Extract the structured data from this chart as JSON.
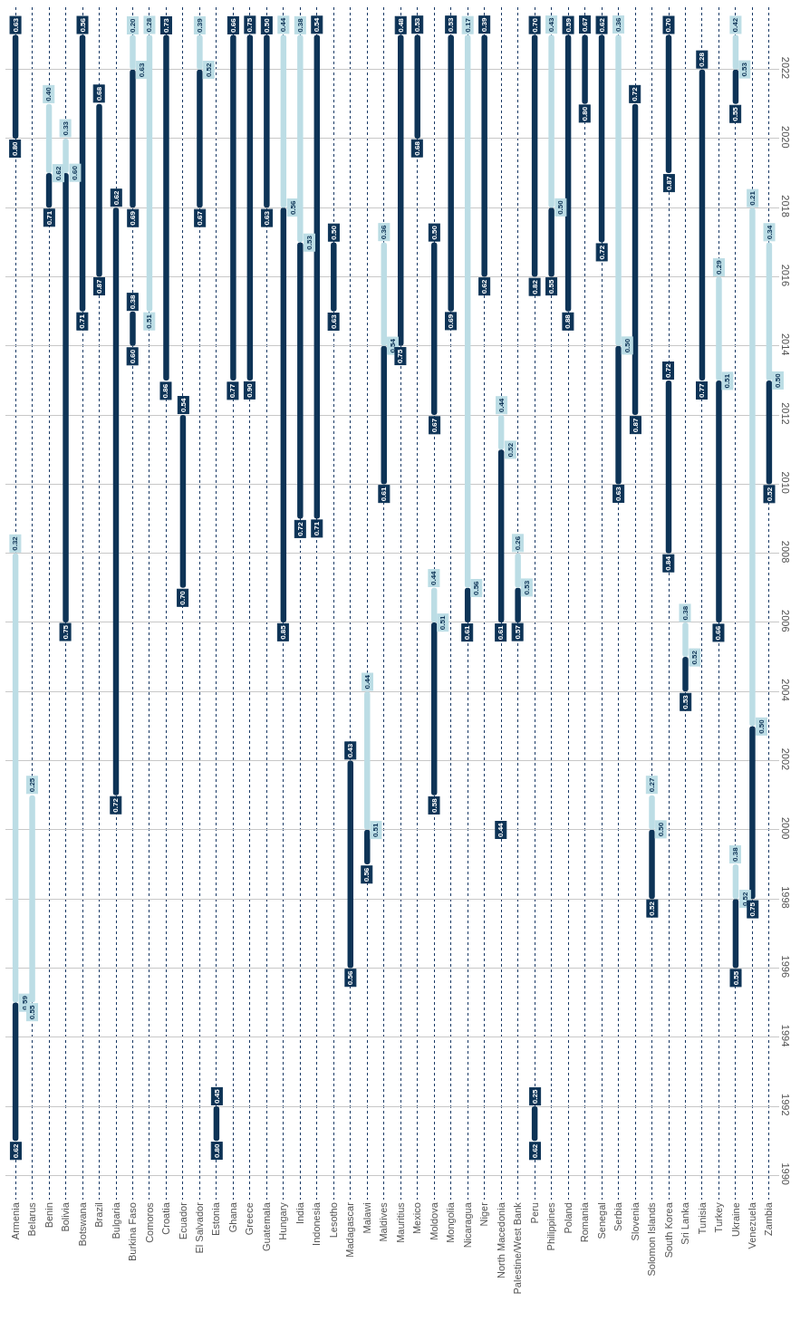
{
  "chart_data": {
    "type": "bar",
    "categories": [
      "Armenia",
      "Belarus",
      "Benin",
      "Bolivia",
      "Botswana",
      "Brazil",
      "Bulgaria",
      "Burkina Faso",
      "Comoros",
      "Croatia",
      "Ecuador",
      "El Salvador",
      "Estonia",
      "Ghana",
      "Greece",
      "Guatemala",
      "Hungary",
      "India",
      "Indonesia",
      "Lesotho",
      "Madagascar",
      "Malawi",
      "Maldives",
      "Mauritius",
      "Mexico",
      "Moldova",
      "Mongolia",
      "Nicaragua",
      "Niger",
      "North Macedonia",
      "Palestine/West Bank",
      "Peru",
      "Philippines",
      "Poland",
      "Romania",
      "Senegal",
      "Serbia",
      "Slovenia",
      "Solomon Islands",
      "South Korea",
      "Sri Lanka",
      "Tunisia",
      "Turkey",
      "Ukraine",
      "Venezuela",
      "Zambia"
    ],
    "series": [
      {
        "color": "#0d3356",
        "base": [
          1991,
          null,
          2018,
          2006,
          2015,
          2016,
          2001,
          2014,
          null,
          2013,
          2007,
          2018,
          1991,
          2013,
          2013,
          2018,
          2006,
          2009,
          2009,
          2015,
          1996,
          1999,
          2010,
          2014,
          2020,
          2001,
          2015,
          2006,
          2016,
          2006,
          2006,
          1991,
          2016,
          2015,
          2021,
          2017,
          2010,
          2012,
          1998,
          2008,
          2004,
          2013,
          2006,
          1996,
          1998,
          2010
        ],
        "values": [
          4,
          null,
          1,
          13,
          8,
          5,
          17,
          1,
          null,
          10,
          5,
          4,
          1,
          10,
          10,
          5,
          12,
          8,
          14,
          2,
          6,
          1,
          4,
          9,
          3,
          5,
          8,
          1,
          7,
          5,
          1,
          1,
          2,
          8,
          2,
          6,
          4,
          9,
          2,
          5,
          1,
          9,
          7,
          2,
          5,
          3
        ]
      },
      {
        "color": "#0d3356",
        "base": [
          2020,
          null,
          null,
          null,
          null,
          null,
          null,
          2018,
          null,
          null,
          null,
          null,
          null,
          null,
          null,
          null,
          null,
          null,
          null,
          null,
          null,
          null,
          null,
          null,
          null,
          2012,
          null,
          null,
          null,
          null,
          null,
          2016,
          null,
          null,
          null,
          null,
          null,
          null,
          null,
          2019,
          null,
          null,
          null,
          2021,
          null,
          null
        ],
        "values": [
          3,
          null,
          null,
          null,
          null,
          null,
          null,
          4,
          null,
          null,
          null,
          null,
          null,
          null,
          null,
          null,
          null,
          null,
          null,
          null,
          null,
          null,
          null,
          null,
          null,
          5,
          null,
          null,
          null,
          null,
          null,
          7,
          null,
          null,
          null,
          null,
          null,
          null,
          null,
          4,
          null,
          null,
          null,
          1,
          null,
          null
        ]
      },
      {
        "color": "#bcdde5",
        "base": [
          1995,
          1995,
          2019,
          2019,
          null,
          null,
          null,
          2022,
          2015,
          null,
          null,
          2022,
          null,
          null,
          null,
          null,
          2018,
          2017,
          null,
          null,
          null,
          2000,
          2014,
          null,
          null,
          2006,
          null,
          2007,
          null,
          null,
          2007,
          null,
          2018,
          null,
          null,
          null,
          2014,
          null,
          2000,
          null,
          2005,
          null,
          2013,
          1998,
          2003,
          2013
        ],
        "values": [
          13,
          6,
          2,
          1,
          null,
          null,
          null,
          1,
          8,
          null,
          null,
          1,
          null,
          null,
          null,
          null,
          5,
          6,
          null,
          null,
          null,
          4,
          3,
          null,
          null,
          1,
          null,
          16,
          null,
          null,
          1,
          null,
          5,
          null,
          null,
          null,
          9,
          null,
          1,
          null,
          1,
          null,
          3,
          1,
          15,
          4
        ]
      },
      {
        "color": "#bcdde5",
        "base": [
          null,
          null,
          null,
          null,
          null,
          null,
          null,
          null,
          null,
          null,
          null,
          null,
          null,
          null,
          null,
          null,
          null,
          null,
          null,
          null,
          null,
          null,
          null,
          null,
          null,
          null,
          null,
          null,
          null,
          2011,
          null,
          null,
          null,
          null,
          null,
          null,
          null,
          null,
          null,
          null,
          null,
          null,
          null,
          2022,
          null,
          null
        ],
        "values": [
          null,
          null,
          null,
          null,
          null,
          null,
          null,
          null,
          null,
          null,
          null,
          null,
          null,
          null,
          null,
          null,
          null,
          null,
          null,
          null,
          null,
          null,
          null,
          null,
          null,
          null,
          null,
          null,
          null,
          1,
          null,
          null,
          null,
          null,
          null,
          null,
          null,
          null,
          null,
          null,
          null,
          null,
          null,
          1,
          null,
          null
        ]
      }
    ],
    "ylim": [
      1989.3,
      2023.8
    ],
    "yticks": [
      1990,
      1992,
      1994,
      1996,
      1998,
      2000,
      2002,
      2004,
      2006,
      2008,
      2010,
      2012,
      2014,
      2016,
      2018,
      2020,
      2022
    ],
    "grid": true,
    "annotations": [
      {
        "text": "0.62",
        "x": "Armenia",
        "y": 1991
      },
      {
        "text": "0.59",
        "x": "Armenia",
        "y": 1995
      },
      {
        "text": "0.32",
        "x": "Armenia",
        "y": 2008
      },
      {
        "text": "0.80",
        "x": "Armenia",
        "y": 2020
      },
      {
        "text": "0.63",
        "x": "Armenia",
        "y": 2023
      },
      {
        "text": "0.55",
        "x": "Belarus",
        "y": 1995
      },
      {
        "text": "0.25",
        "x": "Belarus",
        "y": 2001
      },
      {
        "text": "0.71",
        "x": "Benin",
        "y": 2018
      },
      {
        "text": "0.62",
        "x": "Benin",
        "y": 2019
      },
      {
        "text": "0.40",
        "x": "Benin",
        "y": 2021
      },
      {
        "text": "0.75",
        "x": "Bolivia",
        "y": 2006
      },
      {
        "text": "0.60",
        "x": "Bolivia",
        "y": 2019
      },
      {
        "text": "0.33",
        "x": "Bolivia",
        "y": 2020
      },
      {
        "text": "0.71",
        "x": "Botswana",
        "y": 2015
      },
      {
        "text": "0.56",
        "x": "Botswana",
        "y": 2023
      },
      {
        "text": "0.87",
        "x": "Brazil",
        "y": 2016
      },
      {
        "text": "0.68",
        "x": "Brazil",
        "y": 2021
      },
      {
        "text": "0.72",
        "x": "Bulgaria",
        "y": 2001
      },
      {
        "text": "0.62",
        "x": "Bulgaria",
        "y": 2018
      },
      {
        "text": "0.60",
        "x": "Burkina Faso",
        "y": 2014
      },
      {
        "text": "0.38",
        "x": "Burkina Faso",
        "y": 2015
      },
      {
        "text": "0.69",
        "x": "Burkina Faso",
        "y": 2018
      },
      {
        "text": "0.63",
        "x": "Burkina Faso",
        "y": 2022
      },
      {
        "text": "0.20",
        "x": "Burkina Faso",
        "y": 2023
      },
      {
        "text": "0.51",
        "x": "Comoros",
        "y": 2015
      },
      {
        "text": "0.28",
        "x": "Comoros",
        "y": 2023
      },
      {
        "text": "0.86",
        "x": "Croatia",
        "y": 2013
      },
      {
        "text": "0.73",
        "x": "Croatia",
        "y": 2023
      },
      {
        "text": "0.70",
        "x": "Ecuador",
        "y": 2007
      },
      {
        "text": "0.54",
        "x": "Ecuador",
        "y": 2012
      },
      {
        "text": "0.67",
        "x": "El Salvador",
        "y": 2018
      },
      {
        "text": "0.52",
        "x": "El Salvador",
        "y": 2022
      },
      {
        "text": "0.39",
        "x": "El Salvador",
        "y": 2023
      },
      {
        "text": "0.80",
        "x": "Estonia",
        "y": 1991
      },
      {
        "text": "0.45",
        "x": "Estonia",
        "y": 1992
      },
      {
        "text": "0.77",
        "x": "Ghana",
        "y": 2013
      },
      {
        "text": "0.66",
        "x": "Ghana",
        "y": 2023
      },
      {
        "text": "0.90",
        "x": "Greece",
        "y": 2013
      },
      {
        "text": "0.75",
        "x": "Greece",
        "y": 2023
      },
      {
        "text": "0.63",
        "x": "Guatemala",
        "y": 2018
      },
      {
        "text": "0.50",
        "x": "Guatemala",
        "y": 2023
      },
      {
        "text": "0.85",
        "x": "Hungary",
        "y": 2006
      },
      {
        "text": "0.56",
        "x": "Hungary",
        "y": 2018
      },
      {
        "text": "0.44",
        "x": "Hungary",
        "y": 2023
      },
      {
        "text": "0.72",
        "x": "India",
        "y": 2009
      },
      {
        "text": "0.53",
        "x": "India",
        "y": 2017
      },
      {
        "text": "0.38",
        "x": "India",
        "y": 2023
      },
      {
        "text": "0.71",
        "x": "Indonesia",
        "y": 2009
      },
      {
        "text": "0.54",
        "x": "Indonesia",
        "y": 2023
      },
      {
        "text": "0.63",
        "x": "Lesotho",
        "y": 2015
      },
      {
        "text": "0.50",
        "x": "Lesotho",
        "y": 2017
      },
      {
        "text": "0.56",
        "x": "Madagascar",
        "y": 1996
      },
      {
        "text": "0.43",
        "x": "Madagascar",
        "y": 2002
      },
      {
        "text": "0.56",
        "x": "Malawi",
        "y": 1999
      },
      {
        "text": "0.51",
        "x": "Malawi",
        "y": 2000
      },
      {
        "text": "0.44",
        "x": "Malawi",
        "y": 2004
      },
      {
        "text": "0.61",
        "x": "Maldives",
        "y": 2010
      },
      {
        "text": "0.54",
        "x": "Maldives",
        "y": 2014
      },
      {
        "text": "0.36",
        "x": "Maldives",
        "y": 2017
      },
      {
        "text": "0.75",
        "x": "Mauritius",
        "y": 2014
      },
      {
        "text": "0.48",
        "x": "Mauritius",
        "y": 2023
      },
      {
        "text": "0.68",
        "x": "Mexico",
        "y": 2020
      },
      {
        "text": "0.53",
        "x": "Mexico",
        "y": 2023
      },
      {
        "text": "0.58",
        "x": "Moldova",
        "y": 2001
      },
      {
        "text": "0.51",
        "x": "Moldova",
        "y": 2006
      },
      {
        "text": "0.44",
        "x": "Moldova",
        "y": 2007
      },
      {
        "text": "0.67",
        "x": "Moldova",
        "y": 2012
      },
      {
        "text": "0.50",
        "x": "Moldova",
        "y": 2017
      },
      {
        "text": "0.69",
        "x": "Mongolia",
        "y": 2015
      },
      {
        "text": "0.53",
        "x": "Mongolia",
        "y": 2023
      },
      {
        "text": "0.61",
        "x": "Nicaragua",
        "y": 2006
      },
      {
        "text": "0.56",
        "x": "Nicaragua",
        "y": 2007
      },
      {
        "text": "0.17",
        "x": "Nicaragua",
        "y": 2023
      },
      {
        "text": "0.62",
        "x": "Niger",
        "y": 2016
      },
      {
        "text": "0.39",
        "x": "Niger",
        "y": 2023
      },
      {
        "text": "0.44",
        "x": "North Macedonia",
        "y": 2000
      },
      {
        "text": "0.61",
        "x": "North Macedonia",
        "y": 2006
      },
      {
        "text": "0.52",
        "x": "North Macedonia",
        "y": 2011
      },
      {
        "text": "0.44",
        "x": "North Macedonia",
        "y": 2012
      },
      {
        "text": "0.57",
        "x": "Palestine/West Bank",
        "y": 2006
      },
      {
        "text": "0.53",
        "x": "Palestine/West Bank",
        "y": 2007
      },
      {
        "text": "0.26",
        "x": "Palestine/West Bank",
        "y": 2008
      },
      {
        "text": "0.62",
        "x": "Peru",
        "y": 1991
      },
      {
        "text": "0.25",
        "x": "Peru",
        "y": 1992
      },
      {
        "text": "0.82",
        "x": "Peru",
        "y": 2016
      },
      {
        "text": "0.70",
        "x": "Peru",
        "y": 2023
      },
      {
        "text": "0.55",
        "x": "Philippines",
        "y": 2016
      },
      {
        "text": "0.50",
        "x": "Philippines",
        "y": 2018
      },
      {
        "text": "0.43",
        "x": "Philippines",
        "y": 2023
      },
      {
        "text": "0.88",
        "x": "Poland",
        "y": 2015
      },
      {
        "text": "0.59",
        "x": "Poland",
        "y": 2023
      },
      {
        "text": "0.80",
        "x": "Romania",
        "y": 2021
      },
      {
        "text": "0.67",
        "x": "Romania",
        "y": 2023
      },
      {
        "text": "0.72",
        "x": "Senegal",
        "y": 2017
      },
      {
        "text": "0.62",
        "x": "Senegal",
        "y": 2023
      },
      {
        "text": "0.63",
        "x": "Serbia",
        "y": 2010
      },
      {
        "text": "0.50",
        "x": "Serbia",
        "y": 2014
      },
      {
        "text": "0.36",
        "x": "Serbia",
        "y": 2023
      },
      {
        "text": "0.87",
        "x": "Slovenia",
        "y": 2012
      },
      {
        "text": "0.72",
        "x": "Slovenia",
        "y": 2021
      },
      {
        "text": "0.52",
        "x": "Solomon Islands",
        "y": 1998
      },
      {
        "text": "0.50",
        "x": "Solomon Islands",
        "y": 2000
      },
      {
        "text": "0.27",
        "x": "Solomon Islands",
        "y": 2001
      },
      {
        "text": "0.84",
        "x": "South Korea",
        "y": 2008
      },
      {
        "text": "0.72",
        "x": "South Korea",
        "y": 2013
      },
      {
        "text": "0.87",
        "x": "South Korea",
        "y": 2019
      },
      {
        "text": "0.70",
        "x": "South Korea",
        "y": 2023
      },
      {
        "text": "0.53",
        "x": "Sri Lanka",
        "y": 2004
      },
      {
        "text": "0.52",
        "x": "Sri Lanka",
        "y": 2005
      },
      {
        "text": "0.38",
        "x": "Sri Lanka",
        "y": 2006
      },
      {
        "text": "0.77",
        "x": "Tunisia",
        "y": 2013
      },
      {
        "text": "0.28",
        "x": "Tunisia",
        "y": 2022
      },
      {
        "text": "0.66",
        "x": "Turkey",
        "y": 2006
      },
      {
        "text": "0.51",
        "x": "Turkey",
        "y": 2013
      },
      {
        "text": "0.29",
        "x": "Turkey",
        "y": 2016
      },
      {
        "text": "0.55",
        "x": "Ukraine",
        "y": 1996
      },
      {
        "text": "0.52",
        "x": "Ukraine",
        "y": 1998
      },
      {
        "text": "0.38",
        "x": "Ukraine",
        "y": 1999
      },
      {
        "text": "0.55",
        "x": "Ukraine",
        "y": 2021
      },
      {
        "text": "0.53",
        "x": "Ukraine",
        "y": 2022
      },
      {
        "text": "0.42",
        "x": "Ukraine",
        "y": 2023
      },
      {
        "text": "0.75",
        "x": "Venezuela",
        "y": 1998
      },
      {
        "text": "0.50",
        "x": "Venezuela",
        "y": 2003
      },
      {
        "text": "0.21",
        "x": "Venezuela",
        "y": 2018
      },
      {
        "text": "0.52",
        "x": "Zambia",
        "y": 2010
      },
      {
        "text": "0.50",
        "x": "Zambia",
        "y": 2013
      },
      {
        "text": "0.34",
        "x": "Zambia",
        "y": 2017
      }
    ]
  }
}
